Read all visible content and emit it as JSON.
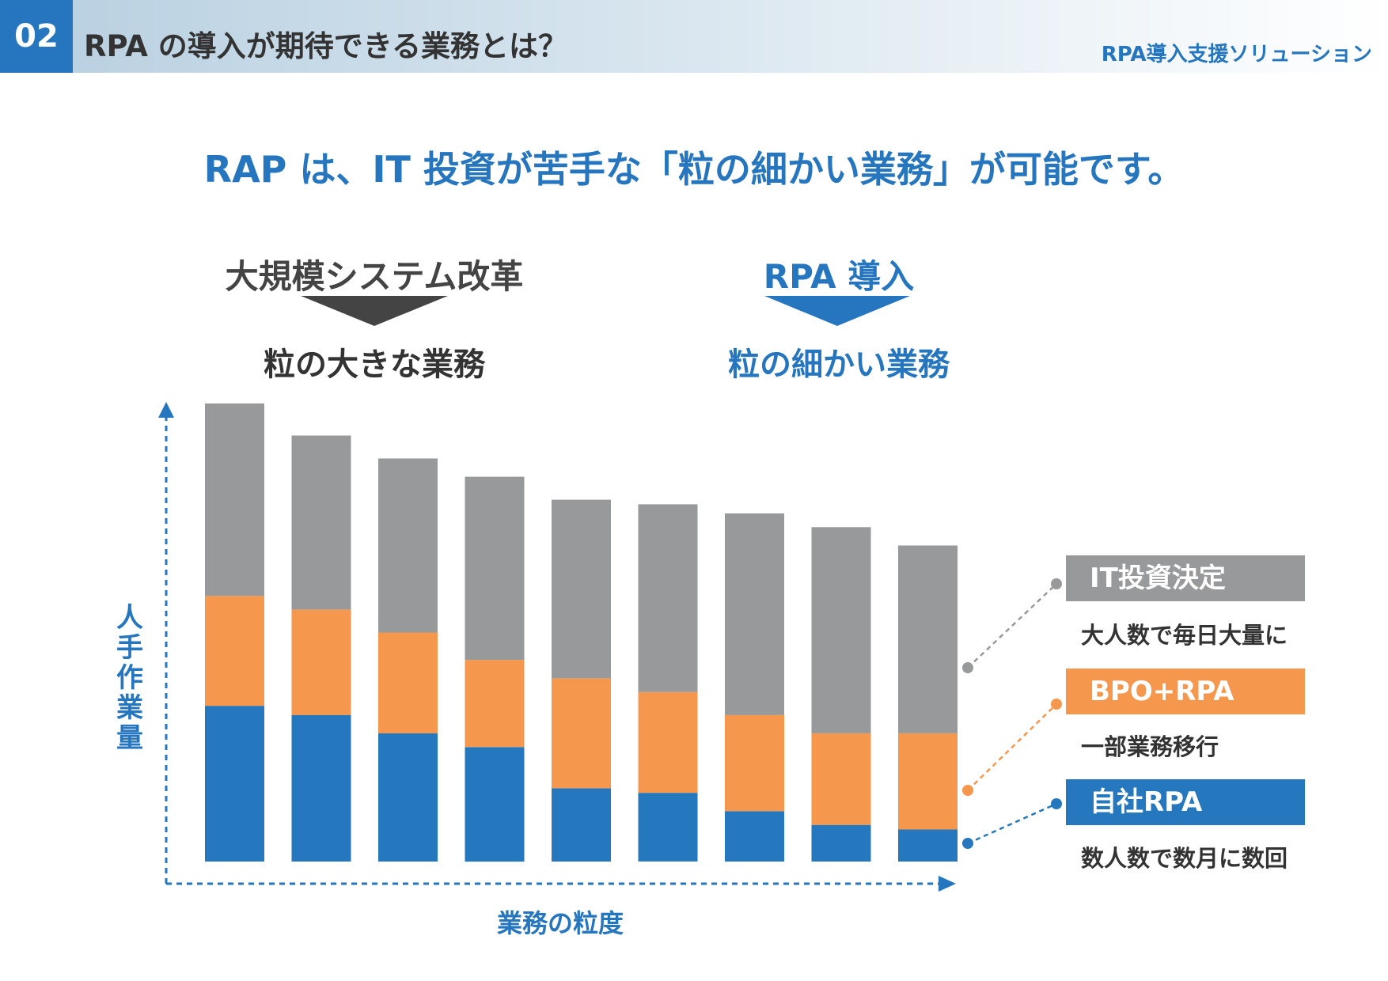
{
  "header": {
    "number": "02",
    "title": "RPA の導入が期待できる業務とは？",
    "brand": "RPA導入支援ソリューション"
  },
  "headline": "RAP は、IT 投資が苦手な「粒の細かい業務」が可能です。",
  "groups": {
    "left": {
      "title": "大規模システム改革",
      "subtitle": "粒の大きな業務",
      "color": "#444444"
    },
    "right": {
      "title": "RPA 導入",
      "subtitle": "粒の細かい業務",
      "color": "#2576bf"
    }
  },
  "chart_data": {
    "type": "bar",
    "stacked": true,
    "xlabel": "業務の粒度",
    "ylabel": "人手作業量",
    "categories": [
      "",
      "",
      "",
      "",
      "",
      "",
      "",
      "",
      ""
    ],
    "ylim": [
      0,
      100
    ],
    "series": [
      {
        "name": "自社RPA",
        "color": "#2577be",
        "values": [
          34,
          32,
          28,
          25,
          16,
          15,
          11,
          8,
          7
        ]
      },
      {
        "name": "BPO+RPA",
        "color": "#f5974c",
        "values": [
          24,
          23,
          22,
          19,
          24,
          22,
          21,
          20,
          21
        ]
      },
      {
        "name": "IT投資決定",
        "color": "#98999b",
        "values": [
          42,
          38,
          38,
          40,
          39,
          41,
          44,
          45,
          41
        ]
      }
    ]
  },
  "legend": [
    {
      "name": "IT投資決定",
      "desc": "大人数で毎日大量に",
      "color": "#98999b"
    },
    {
      "name": "BPO+RPA",
      "desc": "一部業務移行",
      "color": "#f5974c"
    },
    {
      "name": "自社RPA",
      "desc": "数人数で数月に数回",
      "color": "#2577be"
    }
  ]
}
